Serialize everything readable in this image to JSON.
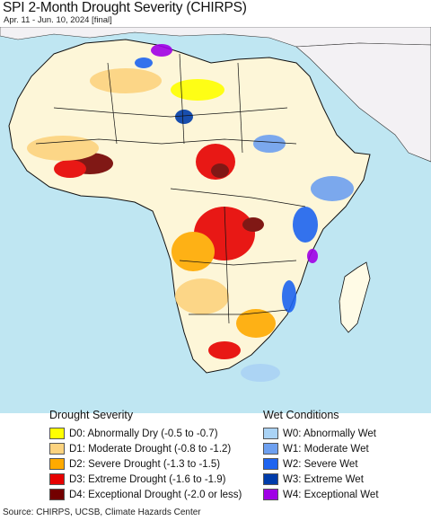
{
  "header": {
    "title": "SPI 2-Month Drought Severity (CHIRPS)",
    "subtitle": "Apr. 11 - Jun. 10, 2024 [final]"
  },
  "map": {
    "colors": {
      "ocean": "#bfe6f2",
      "land_outside": "#f3f1f4",
      "land_base": "#ffffff",
      "border": "#111111"
    }
  },
  "legend": {
    "drought": {
      "heading": "Drought Severity",
      "items": [
        {
          "label": "D0: Abnormally Dry (-0.5 to -0.7)",
          "color": "#ffff00"
        },
        {
          "label": "D1: Moderate Drought (-0.8 to -1.2)",
          "color": "#fcd37f"
        },
        {
          "label": "D2: Severe Drought (-1.3 to -1.5)",
          "color": "#ffaa00"
        },
        {
          "label": "D3: Extreme Drought (-1.6 to -1.9)",
          "color": "#e60000"
        },
        {
          "label": "D4: Exceptional Drought (-2.0 or less)",
          "color": "#730000"
        }
      ]
    },
    "wet": {
      "heading": "Wet Conditions",
      "items": [
        {
          "label": "W0: Abnormally Wet",
          "color": "#aad3f5"
        },
        {
          "label": "W1: Moderate Wet",
          "color": "#6ea0f0"
        },
        {
          "label": "W2: Severe Wet",
          "color": "#1e64f0"
        },
        {
          "label": "W3: Extreme Wet",
          "color": "#003caa"
        },
        {
          "label": "W4: Exceptional Wet",
          "color": "#a000e6"
        }
      ]
    }
  },
  "footer": {
    "source": "Source: CHIRPS, UCSB, Climate Hazards Center"
  }
}
